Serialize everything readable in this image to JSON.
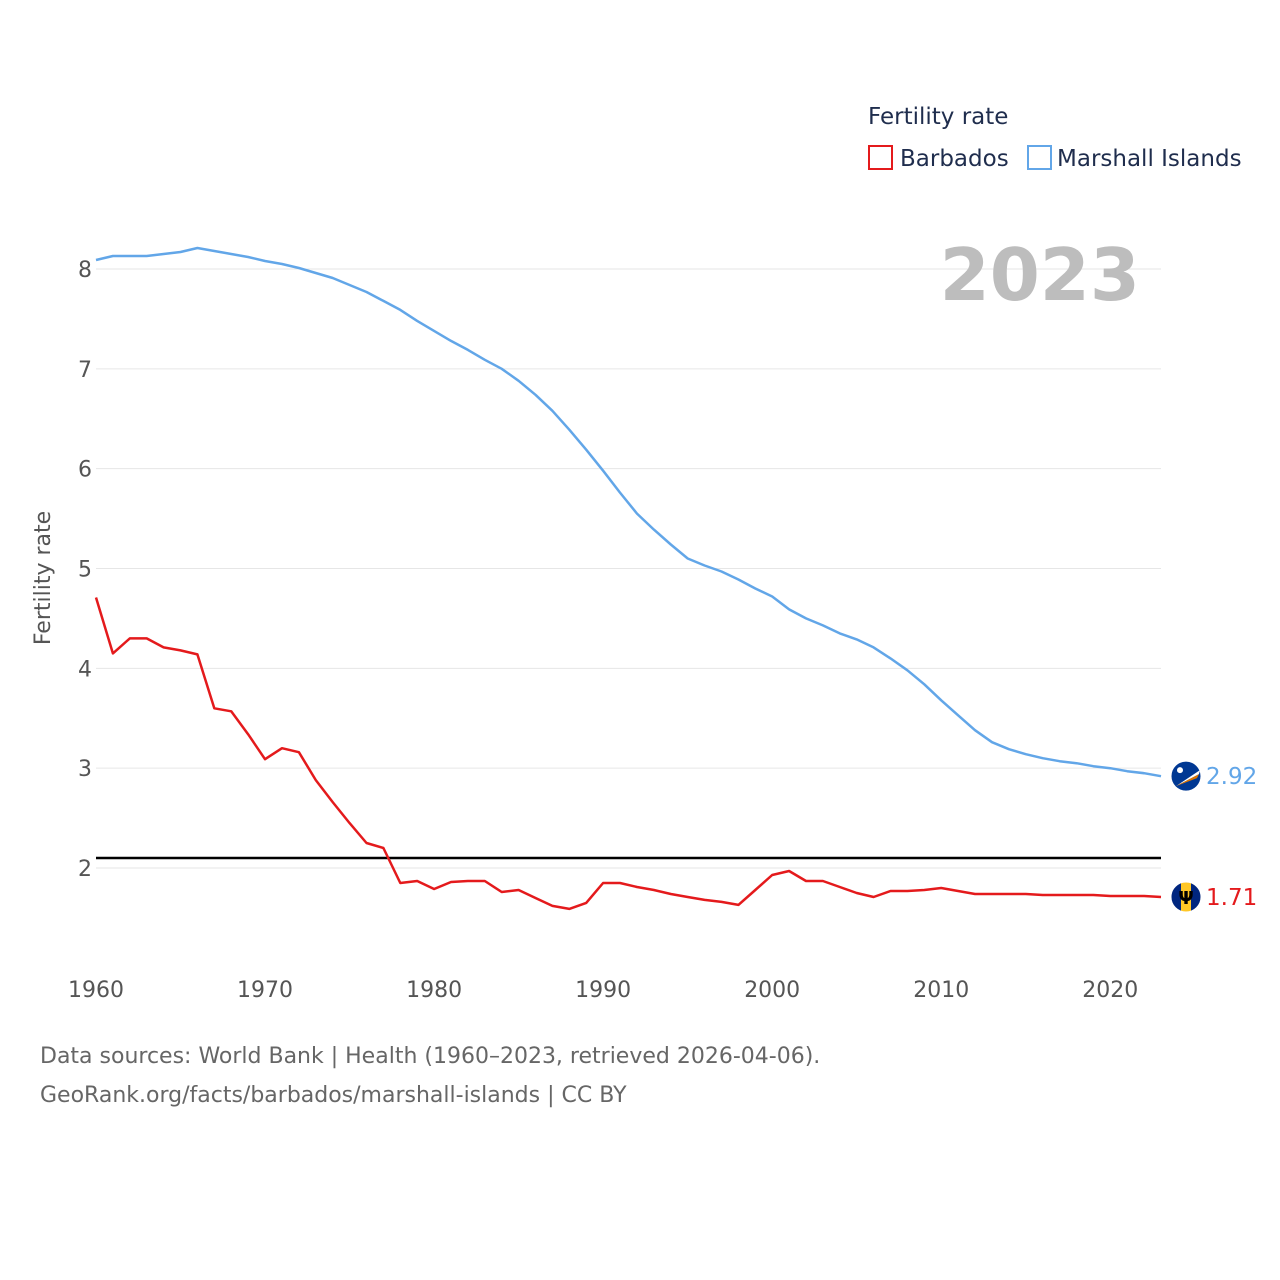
{
  "chart_data": {
    "type": "line",
    "ylabel": "Fertility rate",
    "ylim": [
      1.0,
      8.3
    ],
    "xlim": [
      1960,
      2023
    ],
    "y_ticks": [
      "2",
      "3",
      "4",
      "5",
      "6",
      "7",
      "8"
    ],
    "x_ticks": [
      "1960",
      "1970",
      "1980",
      "1990",
      "2000",
      "2010",
      "2020"
    ],
    "legend_title": "Fertility rate",
    "year_label": "2023",
    "reference_line": 2.1,
    "x": [
      1960,
      1961,
      1962,
      1963,
      1964,
      1965,
      1966,
      1967,
      1968,
      1969,
      1970,
      1971,
      1972,
      1973,
      1974,
      1975,
      1976,
      1977,
      1978,
      1979,
      1980,
      1981,
      1982,
      1983,
      1984,
      1985,
      1986,
      1987,
      1988,
      1989,
      1990,
      1991,
      1992,
      1993,
      1994,
      1995,
      1996,
      1997,
      1998,
      1999,
      2000,
      2001,
      2002,
      2003,
      2004,
      2005,
      2006,
      2007,
      2008,
      2009,
      2010,
      2011,
      2012,
      2013,
      2014,
      2015,
      2016,
      2017,
      2018,
      2019,
      2020,
      2021,
      2022,
      2023
    ],
    "series": [
      {
        "name": "Barbados",
        "color": "#e41a1c",
        "end_label": "1.71",
        "values": [
          4.71,
          4.15,
          4.3,
          4.3,
          4.21,
          4.18,
          4.14,
          3.6,
          3.57,
          3.34,
          3.09,
          3.2,
          3.16,
          2.88,
          2.66,
          2.45,
          2.25,
          2.2,
          1.85,
          1.87,
          1.79,
          1.86,
          1.87,
          1.87,
          1.76,
          1.78,
          1.7,
          1.62,
          1.59,
          1.65,
          1.85,
          1.85,
          1.81,
          1.78,
          1.74,
          1.71,
          1.68,
          1.66,
          1.63,
          1.78,
          1.93,
          1.97,
          1.87,
          1.87,
          1.81,
          1.75,
          1.71,
          1.77,
          1.77,
          1.78,
          1.8,
          1.77,
          1.74,
          1.74,
          1.74,
          1.74,
          1.73,
          1.73,
          1.73,
          1.73,
          1.72,
          1.72,
          1.72,
          1.71
        ]
      },
      {
        "name": "Marshall Islands",
        "color": "#62a6e8",
        "end_label": "2.92",
        "values": [
          8.09,
          8.13,
          8.13,
          8.13,
          8.15,
          8.17,
          8.21,
          8.18,
          8.15,
          8.12,
          8.08,
          8.05,
          8.01,
          7.96,
          7.91,
          7.84,
          7.77,
          7.68,
          7.59,
          7.48,
          7.38,
          7.28,
          7.19,
          7.09,
          7.0,
          6.88,
          6.74,
          6.58,
          6.39,
          6.19,
          5.98,
          5.76,
          5.55,
          5.39,
          5.24,
          5.1,
          5.03,
          4.97,
          4.89,
          4.8,
          4.72,
          4.59,
          4.5,
          4.43,
          4.35,
          4.29,
          4.21,
          4.1,
          3.98,
          3.84,
          3.68,
          3.53,
          3.38,
          3.26,
          3.19,
          3.14,
          3.1,
          3.07,
          3.05,
          3.02,
          3.0,
          2.97,
          2.95,
          2.92
        ]
      }
    ]
  },
  "source": {
    "line1": "Data sources: World Bank | Health (1960–2023, retrieved 2026-04-06).",
    "line2": "GeoRank.org/facts/barbados/marshall-islands | CC BY"
  }
}
